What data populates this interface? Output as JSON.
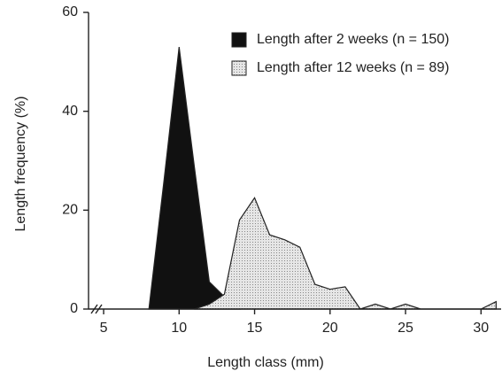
{
  "chart_data": {
    "type": "area",
    "x_label": "Length class (mm)",
    "y_label": "Length frequency (%)",
    "xlim": [
      4,
      31
    ],
    "ylim": [
      0,
      60
    ],
    "xticks": [
      5,
      10,
      15,
      20,
      25,
      30
    ],
    "yticks": [
      0,
      20,
      40,
      60
    ],
    "legend": "upper right",
    "series": [
      {
        "name": "Length after 2 weeks (n = 150)",
        "color": "#111111",
        "x": [
          8,
          9,
          10,
          11,
          12,
          13,
          14
        ],
        "values": [
          0,
          26,
          53,
          29,
          5.5,
          2.5,
          0
        ]
      },
      {
        "name": "Length after 12 weeks (n = 89)",
        "color": "#d4d4d4",
        "x": [
          11,
          12,
          13,
          14,
          15,
          16,
          17,
          18,
          19,
          20,
          21,
          22,
          23,
          24,
          25,
          26,
          27,
          28,
          29,
          30,
          31
        ],
        "values": [
          0,
          1,
          3,
          18,
          22.5,
          15,
          14,
          12.5,
          5,
          4,
          4.5,
          0,
          1,
          0,
          1,
          0,
          0,
          0,
          0,
          0,
          1.5
        ]
      }
    ]
  }
}
